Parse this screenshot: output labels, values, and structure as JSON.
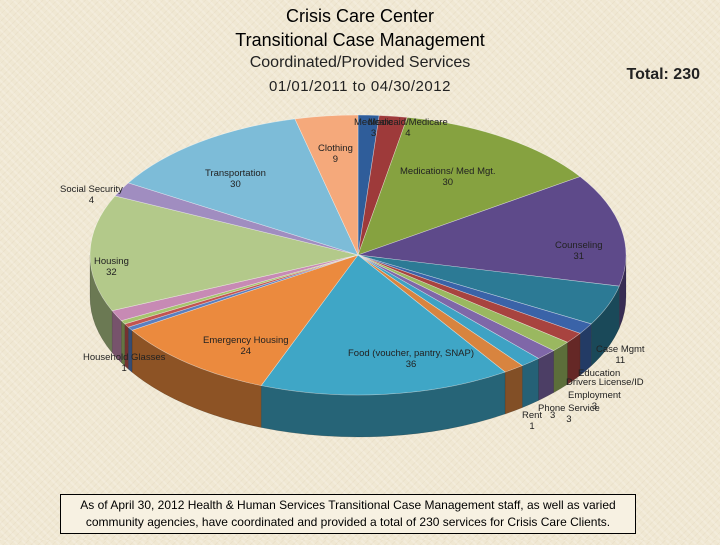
{
  "header": {
    "title_line1": "Crisis Care Center",
    "title_line2": "Transitional Case Management",
    "subtitle": "Coordinated/Provided Services",
    "date_range": "01/01/2011 to 04/30/2012",
    "total_label": "Total: 230"
  },
  "footnote": "As of April 30, 2012 Health & Human Services Transitional Case Management staff, as well as varied community agencies, have coordinated and provided a total of 230 services for Crisis Care Clients.",
  "chart_data": {
    "type": "pie",
    "title": "Coordinated/Provided Services",
    "slices": [
      {
        "name": "Medicare",
        "value": 3,
        "color": "#2f5d9a"
      },
      {
        "name": "Medicaid/Medicare",
        "value": 4,
        "color": "#9e3a3a"
      },
      {
        "name": "Medications/ Med Mgt.",
        "value": 30,
        "color": "#86a240"
      },
      {
        "name": "Counseling",
        "value": 31,
        "color": "#5e4a8a"
      },
      {
        "name": "Case Mgmt",
        "value": 11,
        "color": "#2c7a95"
      },
      {
        "name": "",
        "value": 3,
        "color": "#3a63a8"
      },
      {
        "name": "",
        "value": 3,
        "color": "#a8433f"
      },
      {
        "name": "Education",
        "value": 3,
        "color": "#9ab860"
      },
      {
        "name": "Drivers License/ID",
        "value": 3,
        "color": "#7f67a8"
      },
      {
        "name": "Employment",
        "value": 3,
        "color": "#3ea2c4"
      },
      {
        "name": "Phone Service",
        "value": 3,
        "color": "#d8843f"
      },
      {
        "name": "Food (voucher, pantry, SNAP)",
        "value": 36,
        "color": "#3fa6c6"
      },
      {
        "name": "Emergency Housing",
        "value": 24,
        "color": "#eb8a3e"
      },
      {
        "name": "Household Glasses",
        "value": 1,
        "color": "#5a7fc0"
      },
      {
        "name": "",
        "value": 1,
        "color": "#c25450"
      },
      {
        "name": "",
        "value": 1,
        "color": "#a6c46e"
      },
      {
        "name": "",
        "value": 3,
        "color": "#c78ab4"
      },
      {
        "name": "Housing",
        "value": 32,
        "color": "#b3c98a"
      },
      {
        "name": "Social Security",
        "value": 4,
        "color": "#a08dc0"
      },
      {
        "name": "Transportation",
        "value": 30,
        "color": "#7dbcd8"
      },
      {
        "name": "Clothing",
        "value": 9,
        "color": "#f5a97b"
      }
    ],
    "labels": [
      {
        "text": "Medicare",
        "value": "3"
      },
      {
        "text": "Medicaid/Medicare",
        "value": "4"
      },
      {
        "text": "Medications/ Med Mgt.",
        "value": "30"
      },
      {
        "text": "Counseling",
        "value": "31"
      },
      {
        "text": "Case Mgmt",
        "value": "11"
      },
      {
        "text": "Education",
        "value": ""
      },
      {
        "text": "Drivers License/ID",
        "value": ""
      },
      {
        "text": "Employment",
        "value": "3"
      },
      {
        "text": "Phone Service",
        "value": "3"
      },
      {
        "text": "Rent",
        "value": "1"
      },
      {
        "text": "Food (voucher, pantry, SNAP)",
        "value": "36"
      },
      {
        "text": "Emergency Housing",
        "value": "24"
      },
      {
        "text": "Household Glasses",
        "value": "1"
      },
      {
        "text": "",
        "value": "3"
      },
      {
        "text": "Housing",
        "value": "32"
      },
      {
        "text": "Social Security",
        "value": "4"
      },
      {
        "text": "Transportation",
        "value": "30"
      },
      {
        "text": "Clothing",
        "value": "9"
      }
    ]
  }
}
